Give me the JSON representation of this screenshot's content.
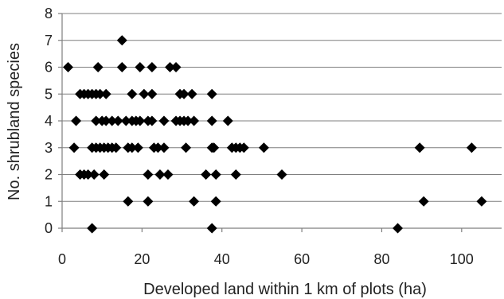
{
  "chart_data": {
    "type": "scatter",
    "title": "",
    "xlabel": "Developed land within 1 km of plots (ha)",
    "ylabel": "No. shrubland species",
    "xlim": [
      0,
      110
    ],
    "ylim": [
      0,
      8
    ],
    "x_ticks": [
      0,
      20,
      40,
      60,
      80,
      100
    ],
    "y_ticks": [
      0,
      1,
      2,
      3,
      4,
      5,
      6,
      7,
      8
    ],
    "grid": "horizontal",
    "legend": "none",
    "marker": "diamond",
    "marker_color": "#000000",
    "points": [
      {
        "x": 15,
        "y": 7
      },
      {
        "x": 1.5,
        "y": 6
      },
      {
        "x": 9,
        "y": 6
      },
      {
        "x": 15,
        "y": 6
      },
      {
        "x": 19.5,
        "y": 6
      },
      {
        "x": 22.5,
        "y": 6
      },
      {
        "x": 27,
        "y": 6
      },
      {
        "x": 28.5,
        "y": 6
      },
      {
        "x": 4.5,
        "y": 5
      },
      {
        "x": 5.5,
        "y": 5
      },
      {
        "x": 6.5,
        "y": 5
      },
      {
        "x": 7.5,
        "y": 5
      },
      {
        "x": 8.5,
        "y": 5
      },
      {
        "x": 9.5,
        "y": 5
      },
      {
        "x": 11,
        "y": 5
      },
      {
        "x": 17.5,
        "y": 5
      },
      {
        "x": 20.5,
        "y": 5
      },
      {
        "x": 22.5,
        "y": 5
      },
      {
        "x": 29.5,
        "y": 5
      },
      {
        "x": 30.5,
        "y": 5
      },
      {
        "x": 32.5,
        "y": 5
      },
      {
        "x": 37.5,
        "y": 5
      },
      {
        "x": 3.5,
        "y": 4
      },
      {
        "x": 8.5,
        "y": 4
      },
      {
        "x": 10,
        "y": 4
      },
      {
        "x": 11,
        "y": 4
      },
      {
        "x": 12.5,
        "y": 4
      },
      {
        "x": 14,
        "y": 4
      },
      {
        "x": 16,
        "y": 4
      },
      {
        "x": 17.5,
        "y": 4
      },
      {
        "x": 18.5,
        "y": 4
      },
      {
        "x": 19.5,
        "y": 4
      },
      {
        "x": 21.5,
        "y": 4
      },
      {
        "x": 22.5,
        "y": 4
      },
      {
        "x": 25.5,
        "y": 4
      },
      {
        "x": 28.5,
        "y": 4
      },
      {
        "x": 29.5,
        "y": 4
      },
      {
        "x": 30.5,
        "y": 4
      },
      {
        "x": 31.5,
        "y": 4
      },
      {
        "x": 33,
        "y": 4
      },
      {
        "x": 37.5,
        "y": 4
      },
      {
        "x": 41.5,
        "y": 4
      },
      {
        "x": 3,
        "y": 3
      },
      {
        "x": 7.5,
        "y": 3
      },
      {
        "x": 8.5,
        "y": 3
      },
      {
        "x": 9.5,
        "y": 3
      },
      {
        "x": 10.5,
        "y": 3
      },
      {
        "x": 11.5,
        "y": 3
      },
      {
        "x": 12.5,
        "y": 3
      },
      {
        "x": 13.5,
        "y": 3
      },
      {
        "x": 16.5,
        "y": 3
      },
      {
        "x": 17.5,
        "y": 3
      },
      {
        "x": 19,
        "y": 3
      },
      {
        "x": 23,
        "y": 3
      },
      {
        "x": 24,
        "y": 3
      },
      {
        "x": 25.5,
        "y": 3
      },
      {
        "x": 31,
        "y": 3
      },
      {
        "x": 37.5,
        "y": 3
      },
      {
        "x": 38,
        "y": 3
      },
      {
        "x": 42.5,
        "y": 3
      },
      {
        "x": 43.5,
        "y": 3
      },
      {
        "x": 44.5,
        "y": 3
      },
      {
        "x": 45.5,
        "y": 3
      },
      {
        "x": 50.5,
        "y": 3
      },
      {
        "x": 89.5,
        "y": 3
      },
      {
        "x": 102.5,
        "y": 3
      },
      {
        "x": 4.5,
        "y": 2
      },
      {
        "x": 5.5,
        "y": 2
      },
      {
        "x": 6.5,
        "y": 2
      },
      {
        "x": 8,
        "y": 2
      },
      {
        "x": 10.5,
        "y": 2
      },
      {
        "x": 21.5,
        "y": 2
      },
      {
        "x": 24.5,
        "y": 2
      },
      {
        "x": 26.5,
        "y": 2
      },
      {
        "x": 36,
        "y": 2
      },
      {
        "x": 38.5,
        "y": 2
      },
      {
        "x": 43.5,
        "y": 2
      },
      {
        "x": 55,
        "y": 2
      },
      {
        "x": 16.5,
        "y": 1
      },
      {
        "x": 21.5,
        "y": 1
      },
      {
        "x": 33,
        "y": 1
      },
      {
        "x": 38.5,
        "y": 1
      },
      {
        "x": 90.5,
        "y": 1
      },
      {
        "x": 105,
        "y": 1
      },
      {
        "x": 7.5,
        "y": 0
      },
      {
        "x": 37.5,
        "y": 0
      },
      {
        "x": 84,
        "y": 0
      }
    ]
  }
}
